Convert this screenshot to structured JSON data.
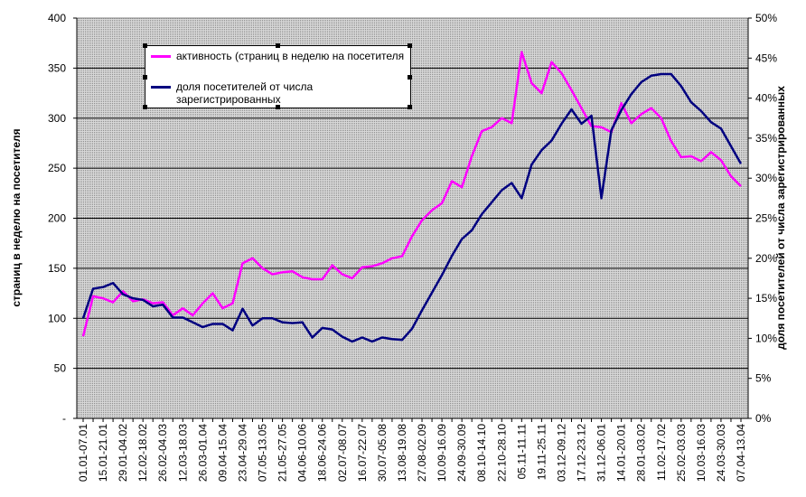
{
  "chart_data": {
    "type": "line",
    "y_label": "страниц в неделю на посетителя",
    "y2_label": "доля посетителей от числа зарегистрированных",
    "categories": [
      "01.01-07.01",
      null,
      "15.01-21.01",
      null,
      "29.01-04.02",
      null,
      "12.02-18.02",
      null,
      "26.02-04.03",
      null,
      "12.03-18.03",
      null,
      "26.03-01.04",
      null,
      "09.04-15.04",
      null,
      "23.04-29.04",
      null,
      "07.05-13.05",
      null,
      "21.05-27.05",
      null,
      "04.06-10.06",
      null,
      "18.06-24.06",
      null,
      "02.07-08.07",
      null,
      "16.07-22.07",
      null,
      "30.07-05.08",
      null,
      "13.08-19.08",
      null,
      "27.08-02.09",
      null,
      "10.09-16.09",
      null,
      "24.09-30.09",
      null,
      "08.10-14.10",
      null,
      "22.10-28.10",
      null,
      "05.11-11.11",
      null,
      "19.11-25.11",
      null,
      "03.12-09.12",
      null,
      "17.12-23.12",
      null,
      "31.12-06.01",
      null,
      "14.01-20.01",
      null,
      "28.01-03.02",
      null,
      "11.02-17.02",
      null,
      "25.02-03.03",
      null,
      "10.03-16.03",
      null,
      "24.03-30.03",
      null,
      "07.04-13.04"
    ],
    "series": [
      {
        "name": "активность (страниц в неделю  на посетителя",
        "color": "#ff00ff",
        "axis": "y",
        "values": [
          82,
          122,
          120,
          116,
          127,
          117,
          119,
          115,
          116,
          103,
          110,
          103,
          115,
          125,
          110,
          115,
          155,
          160,
          150,
          144,
          146,
          147,
          141,
          139,
          139,
          153,
          144,
          140,
          151,
          152,
          155,
          160,
          162,
          182,
          198,
          208,
          215,
          237,
          231,
          262,
          287,
          291,
          300,
          295,
          366,
          335,
          325,
          356,
          345,
          328,
          310,
          292,
          291,
          286,
          315,
          295,
          304,
          310,
          300,
          277,
          261,
          262,
          257,
          266,
          258,
          242,
          232
        ]
      },
      {
        "name": "доля посетителей от числа зарегистрированных",
        "color": "#000080",
        "axis": "y2",
        "values": [
          12.5,
          16.2,
          16.4,
          16.9,
          15.5,
          15.0,
          14.8,
          14.0,
          14.2,
          12.6,
          12.6,
          12.0,
          11.4,
          11.8,
          11.8,
          11.0,
          13.7,
          11.6,
          12.5,
          12.5,
          12.0,
          11.9,
          12.0,
          10.1,
          11.3,
          11.1,
          10.2,
          9.6,
          10.1,
          9.6,
          10.1,
          9.9,
          9.8,
          11.2,
          13.5,
          15.7,
          17.9,
          20.3,
          22.4,
          23.5,
          25.5,
          27.0,
          28.5,
          29.4,
          27.5,
          31.7,
          33.5,
          34.7,
          36.8,
          38.6,
          36.8,
          37.8,
          27.5,
          36.0,
          38.5,
          40.5,
          42.0,
          42.8,
          43.0,
          43.0,
          41.5,
          39.5,
          38.4,
          37.0,
          36.2,
          34.0,
          31.8
        ]
      }
    ],
    "ylim": [
      0,
      400
    ],
    "yticks": [
      {
        "value": 0,
        "label": "-"
      },
      50,
      100,
      150,
      200,
      250,
      300,
      350,
      400
    ],
    "y2lim": [
      0,
      50
    ],
    "y2ticks": [
      {
        "value": 0,
        "label": "0%"
      },
      {
        "value": 5,
        "label": "5%"
      },
      {
        "value": 10,
        "label": "10%"
      },
      {
        "value": 15,
        "label": "15%"
      },
      {
        "value": 20,
        "label": "20%"
      },
      {
        "value": 25,
        "label": "25%"
      },
      {
        "value": 30,
        "label": "30%"
      },
      {
        "value": 35,
        "label": "35%"
      },
      {
        "value": 40,
        "label": "40%"
      },
      {
        "value": 45,
        "label": "45%"
      },
      {
        "value": 50,
        "label": "50%"
      }
    ],
    "grid": true
  }
}
